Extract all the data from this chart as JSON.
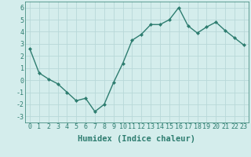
{
  "x": [
    0,
    1,
    2,
    3,
    4,
    5,
    6,
    7,
    8,
    9,
    10,
    11,
    12,
    13,
    14,
    15,
    16,
    17,
    18,
    19,
    20,
    21,
    22,
    23
  ],
  "y": [
    2.6,
    0.6,
    0.1,
    -0.3,
    -1.0,
    -1.7,
    -1.5,
    -2.6,
    -2.0,
    -0.2,
    1.4,
    3.3,
    3.8,
    4.6,
    4.6,
    5.0,
    6.0,
    4.5,
    3.9,
    4.4,
    4.8,
    4.1,
    3.5,
    2.9
  ],
  "line_color": "#2e7d70",
  "marker": "D",
  "marker_size": 2.0,
  "bg_color": "#d4edec",
  "grid_color": "#b8d8d8",
  "xlabel": "Humidex (Indice chaleur)",
  "xlim": [
    -0.5,
    23.5
  ],
  "ylim": [
    -3.5,
    6.5
  ],
  "yticks": [
    -3,
    -2,
    -1,
    0,
    1,
    2,
    3,
    4,
    5,
    6
  ],
  "xticks": [
    0,
    1,
    2,
    3,
    4,
    5,
    6,
    7,
    8,
    9,
    10,
    11,
    12,
    13,
    14,
    15,
    16,
    17,
    18,
    19,
    20,
    21,
    22,
    23
  ],
  "tick_label_fontsize": 6.0,
  "xlabel_fontsize": 7.5,
  "line_width": 1.0
}
